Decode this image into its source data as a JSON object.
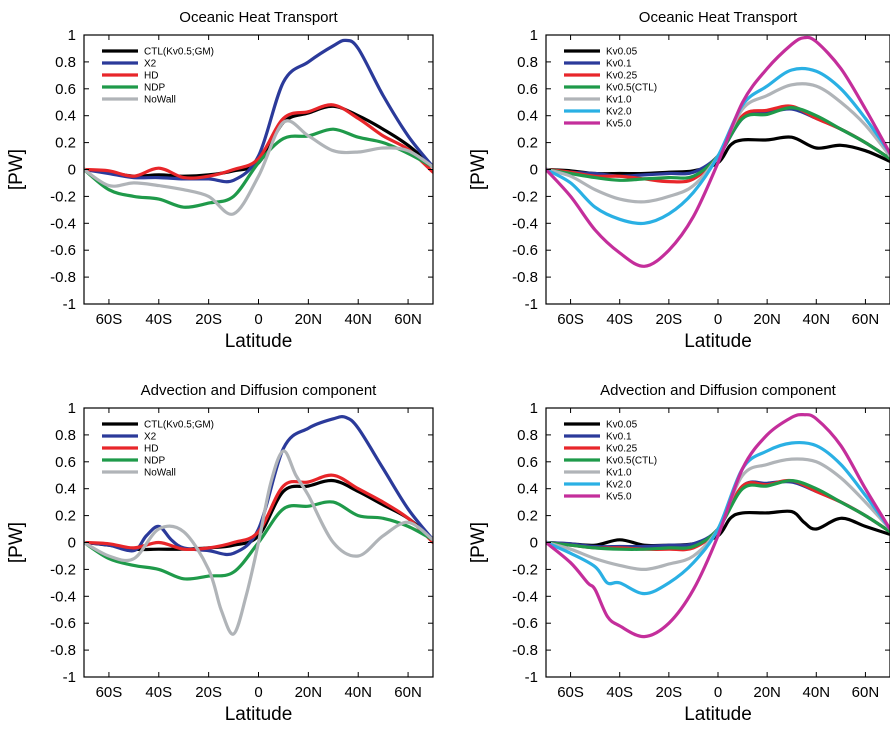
{
  "chart_data": [
    {
      "type": "line",
      "title": "Oceanic Heat Transport",
      "xlabel": "Latitude",
      "ylabel": "[PW]",
      "xlim": [
        -70,
        70
      ],
      "ylim": [
        -1,
        1
      ],
      "xticks": [
        -60,
        -40,
        -20,
        0,
        20,
        40,
        60
      ],
      "xtick_labels": [
        "60S",
        "40S",
        "20S",
        "0",
        "20N",
        "40N",
        "60N"
      ],
      "yticks": [
        -1,
        -0.8,
        -0.6,
        -0.4,
        -0.2,
        0,
        0.2,
        0.4,
        0.6,
        0.8,
        1
      ],
      "ytick_labels": [
        "-1",
        "-0.8",
        "-0.6",
        "-0.4",
        "-0.2",
        "0",
        "0.2",
        "0.4",
        "0.6",
        "0.8",
        "1"
      ],
      "legend_position": "top-left",
      "series": [
        {
          "name": "CTL(Kv0.5;GM)",
          "color": "#000000",
          "x": [
            -70,
            -60,
            -50,
            -40,
            -30,
            -20,
            -10,
            0,
            10,
            20,
            30,
            40,
            50,
            60,
            70
          ],
          "y": [
            0,
            -0.02,
            -0.05,
            -0.04,
            -0.05,
            -0.04,
            -0.01,
            0.05,
            0.35,
            0.42,
            0.47,
            0.4,
            0.3,
            0.18,
            0.02
          ]
        },
        {
          "name": "X2",
          "color": "#2b3a9a",
          "x": [
            -70,
            -60,
            -50,
            -40,
            -30,
            -20,
            -10,
            0,
            10,
            20,
            30,
            35,
            40,
            50,
            60,
            70
          ],
          "y": [
            0,
            -0.03,
            -0.06,
            -0.06,
            -0.07,
            -0.07,
            -0.08,
            0.1,
            0.65,
            0.8,
            0.92,
            0.96,
            0.9,
            0.55,
            0.25,
            0.02
          ]
        },
        {
          "name": "HD",
          "color": "#e8262a",
          "x": [
            -70,
            -60,
            -50,
            -40,
            -30,
            -20,
            -10,
            0,
            10,
            20,
            30,
            40,
            50,
            60,
            70
          ],
          "y": [
            0,
            -0.01,
            -0.05,
            0.01,
            -0.06,
            -0.05,
            0.0,
            0.08,
            0.38,
            0.43,
            0.48,
            0.38,
            0.25,
            0.15,
            -0.02
          ]
        },
        {
          "name": "NDP",
          "color": "#1f9a4a",
          "x": [
            -70,
            -60,
            -50,
            -40,
            -30,
            -20,
            -10,
            0,
            10,
            20,
            30,
            40,
            50,
            60,
            70
          ],
          "y": [
            0,
            -0.15,
            -0.2,
            -0.22,
            -0.28,
            -0.25,
            -0.2,
            0.05,
            0.23,
            0.25,
            0.3,
            0.24,
            0.2,
            0.12,
            0.02
          ]
        },
        {
          "name": "NoWall",
          "color": "#b0b4b8",
          "x": [
            -70,
            -60,
            -50,
            -40,
            -30,
            -20,
            -10,
            0,
            10,
            20,
            30,
            40,
            50,
            60,
            70
          ],
          "y": [
            0,
            -0.12,
            -0.1,
            -0.12,
            -0.15,
            -0.2,
            -0.33,
            -0.05,
            0.35,
            0.25,
            0.14,
            0.13,
            0.16,
            0.14,
            0.02
          ]
        }
      ]
    },
    {
      "type": "line",
      "title": "Oceanic Heat Transport",
      "xlabel": "Latitude",
      "ylabel": "[PW]",
      "xlim": [
        -70,
        70
      ],
      "ylim": [
        -1,
        1
      ],
      "xticks": [
        -60,
        -40,
        -20,
        0,
        20,
        40,
        60
      ],
      "xtick_labels": [
        "60S",
        "40S",
        "20S",
        "0",
        "20N",
        "40N",
        "60N"
      ],
      "yticks": [
        -1,
        -0.8,
        -0.6,
        -0.4,
        -0.2,
        0,
        0.2,
        0.4,
        0.6,
        0.8,
        1
      ],
      "ytick_labels": [
        "-1",
        "-0.8",
        "-0.6",
        "-0.4",
        "-0.2",
        "0",
        "0.2",
        "0.4",
        "0.6",
        "0.8",
        "1"
      ],
      "legend_position": "top-left",
      "series": [
        {
          "name": "Kv0.05",
          "color": "#000000",
          "x": [
            -70,
            -60,
            -50,
            -40,
            -30,
            -20,
            -10,
            0,
            5,
            10,
            20,
            30,
            40,
            50,
            60,
            70
          ],
          "y": [
            0,
            -0.01,
            -0.03,
            -0.03,
            -0.03,
            -0.02,
            -0.01,
            0.05,
            0.18,
            0.22,
            0.22,
            0.24,
            0.16,
            0.18,
            0.14,
            0.06
          ]
        },
        {
          "name": "Kv0.1",
          "color": "#2b3a9a",
          "x": [
            -70,
            -60,
            -50,
            -40,
            -30,
            -20,
            -10,
            0,
            10,
            20,
            30,
            40,
            50,
            60,
            70
          ],
          "y": [
            0,
            -0.02,
            -0.03,
            -0.05,
            -0.04,
            -0.03,
            -0.02,
            0.1,
            0.38,
            0.42,
            0.45,
            0.38,
            0.3,
            0.2,
            0.08
          ]
        },
        {
          "name": "Kv0.25",
          "color": "#e8262a",
          "x": [
            -70,
            -60,
            -50,
            -40,
            -30,
            -20,
            -10,
            0,
            10,
            20,
            30,
            40,
            50,
            60,
            70
          ],
          "y": [
            0,
            -0.02,
            -0.05,
            -0.05,
            -0.07,
            -0.09,
            -0.07,
            0.1,
            0.4,
            0.44,
            0.47,
            0.38,
            0.3,
            0.2,
            0.08
          ]
        },
        {
          "name": "Kv0.5(CTL)",
          "color": "#1f9a4a",
          "x": [
            -70,
            -60,
            -50,
            -40,
            -30,
            -20,
            -10,
            0,
            10,
            20,
            30,
            40,
            50,
            60,
            70
          ],
          "y": [
            0,
            -0.03,
            -0.06,
            -0.08,
            -0.07,
            -0.06,
            -0.05,
            0.1,
            0.38,
            0.41,
            0.46,
            0.4,
            0.3,
            0.2,
            0.08
          ]
        },
        {
          "name": "Kv1.0",
          "color": "#b0b4b8",
          "x": [
            -70,
            -60,
            -50,
            -40,
            -30,
            -20,
            -10,
            0,
            10,
            20,
            30,
            40,
            50,
            60,
            70
          ],
          "y": [
            0,
            -0.05,
            -0.15,
            -0.22,
            -0.24,
            -0.2,
            -0.12,
            0.1,
            0.45,
            0.55,
            0.63,
            0.62,
            0.5,
            0.33,
            0.1
          ]
        },
        {
          "name": "Kv2.0",
          "color": "#2ab0e4",
          "x": [
            -70,
            -60,
            -50,
            -40,
            -30,
            -20,
            -10,
            0,
            10,
            20,
            30,
            40,
            50,
            60,
            70
          ],
          "y": [
            0,
            -0.1,
            -0.28,
            -0.37,
            -0.4,
            -0.33,
            -0.17,
            0.1,
            0.48,
            0.62,
            0.74,
            0.73,
            0.6,
            0.38,
            0.12
          ]
        },
        {
          "name": "Kv5.0",
          "color": "#c42e9b",
          "x": [
            -70,
            -60,
            -50,
            -40,
            -30,
            -20,
            -10,
            0,
            10,
            20,
            30,
            35,
            40,
            50,
            60,
            70
          ],
          "y": [
            0,
            -0.2,
            -0.45,
            -0.62,
            -0.72,
            -0.6,
            -0.35,
            0.05,
            0.5,
            0.75,
            0.93,
            0.98,
            0.95,
            0.75,
            0.45,
            0.12
          ]
        }
      ]
    },
    {
      "type": "line",
      "title": "Advection and Diffusion component",
      "xlabel": "Latitude",
      "ylabel": "[PW]",
      "xlim": [
        -70,
        70
      ],
      "ylim": [
        -1,
        1
      ],
      "xticks": [
        -60,
        -40,
        -20,
        0,
        20,
        40,
        60
      ],
      "xtick_labels": [
        "60S",
        "40S",
        "20S",
        "0",
        "20N",
        "40N",
        "60N"
      ],
      "yticks": [
        -1,
        -0.8,
        -0.6,
        -0.4,
        -0.2,
        0,
        0.2,
        0.4,
        0.6,
        0.8,
        1
      ],
      "ytick_labels": [
        "-1",
        "-0.8",
        "-0.6",
        "-0.4",
        "-0.2",
        "0",
        "0.2",
        "0.4",
        "0.6",
        "0.8",
        "1"
      ],
      "legend_position": "top-left",
      "series": [
        {
          "name": "CTL(Kv0.5;GM)",
          "color": "#000000",
          "x": [
            -70,
            -60,
            -50,
            -40,
            -30,
            -20,
            -10,
            0,
            10,
            20,
            30,
            40,
            50,
            60,
            70
          ],
          "y": [
            0,
            -0.02,
            -0.05,
            -0.05,
            -0.05,
            -0.04,
            -0.02,
            0.05,
            0.38,
            0.42,
            0.46,
            0.38,
            0.28,
            0.18,
            0.02
          ]
        },
        {
          "name": "X2",
          "color": "#2b3a9a",
          "x": [
            -70,
            -60,
            -50,
            -45,
            -40,
            -35,
            -30,
            -20,
            -10,
            0,
            10,
            20,
            30,
            35,
            40,
            50,
            60,
            70
          ],
          "y": [
            0,
            -0.02,
            -0.06,
            0.05,
            0.12,
            0.02,
            -0.04,
            -0.06,
            -0.08,
            0.1,
            0.7,
            0.85,
            0.92,
            0.93,
            0.85,
            0.55,
            0.25,
            0.02
          ]
        },
        {
          "name": "HD",
          "color": "#e8262a",
          "x": [
            -70,
            -60,
            -50,
            -40,
            -30,
            -20,
            -10,
            0,
            10,
            20,
            30,
            40,
            50,
            60,
            70
          ],
          "y": [
            0,
            -0.01,
            -0.04,
            0.0,
            -0.05,
            -0.04,
            0.0,
            0.08,
            0.42,
            0.45,
            0.5,
            0.4,
            0.3,
            0.18,
            0.0
          ]
        },
        {
          "name": "NDP",
          "color": "#1f9a4a",
          "x": [
            -70,
            -60,
            -50,
            -40,
            -30,
            -20,
            -10,
            0,
            10,
            20,
            30,
            40,
            50,
            60,
            70
          ],
          "y": [
            0,
            -0.12,
            -0.17,
            -0.2,
            -0.27,
            -0.25,
            -0.22,
            0.0,
            0.25,
            0.27,
            0.3,
            0.2,
            0.18,
            0.12,
            0.02
          ]
        },
        {
          "name": "NoWall",
          "color": "#b0b4b8",
          "x": [
            -70,
            -60,
            -50,
            -40,
            -30,
            -20,
            -15,
            -10,
            -5,
            0,
            5,
            10,
            15,
            20,
            30,
            40,
            50,
            60,
            70
          ],
          "y": [
            0,
            -0.1,
            -0.12,
            0.1,
            0.08,
            -0.2,
            -0.5,
            -0.68,
            -0.4,
            0.0,
            0.45,
            0.68,
            0.5,
            0.35,
            0.0,
            -0.1,
            0.05,
            0.15,
            0.02
          ]
        }
      ]
    },
    {
      "type": "line",
      "title": "Advection and Diffusion component",
      "xlabel": "Latitude",
      "ylabel": "[PW]",
      "xlim": [
        -70,
        70
      ],
      "ylim": [
        -1,
        1
      ],
      "xticks": [
        -60,
        -40,
        -20,
        0,
        20,
        40,
        60
      ],
      "xtick_labels": [
        "60S",
        "40S",
        "20S",
        "0",
        "20N",
        "40N",
        "60N"
      ],
      "yticks": [
        -1,
        -0.8,
        -0.6,
        -0.4,
        -0.2,
        0,
        0.2,
        0.4,
        0.6,
        0.8,
        1
      ],
      "ytick_labels": [
        "-1",
        "-0.8",
        "-0.6",
        "-0.4",
        "-0.2",
        "0",
        "0.2",
        "0.4",
        "0.6",
        "0.8",
        "1"
      ],
      "legend_position": "top-left",
      "series": [
        {
          "name": "Kv0.05",
          "color": "#000000",
          "x": [
            -70,
            -60,
            -50,
            -40,
            -30,
            -20,
            -10,
            0,
            5,
            10,
            20,
            30,
            35,
            40,
            50,
            60,
            70
          ],
          "y": [
            0,
            -0.01,
            -0.02,
            0.02,
            -0.02,
            -0.02,
            -0.01,
            0.05,
            0.18,
            0.22,
            0.22,
            0.23,
            0.15,
            0.1,
            0.18,
            0.12,
            0.06
          ]
        },
        {
          "name": "Kv0.1",
          "color": "#2b3a9a",
          "x": [
            -70,
            -60,
            -50,
            -40,
            -30,
            -20,
            -10,
            0,
            10,
            20,
            30,
            40,
            50,
            60,
            70
          ],
          "y": [
            0,
            -0.01,
            -0.03,
            -0.03,
            -0.03,
            -0.02,
            -0.01,
            0.1,
            0.42,
            0.44,
            0.45,
            0.38,
            0.3,
            0.2,
            0.08
          ]
        },
        {
          "name": "Kv0.25",
          "color": "#e8262a",
          "x": [
            -70,
            -60,
            -50,
            -40,
            -30,
            -20,
            -10,
            0,
            10,
            20,
            30,
            40,
            50,
            60,
            70
          ],
          "y": [
            0,
            -0.02,
            -0.04,
            -0.04,
            -0.05,
            -0.05,
            -0.04,
            0.1,
            0.42,
            0.43,
            0.46,
            0.38,
            0.3,
            0.2,
            0.08
          ]
        },
        {
          "name": "Kv0.5(CTL)",
          "color": "#1f9a4a",
          "x": [
            -70,
            -60,
            -50,
            -40,
            -30,
            -20,
            -10,
            0,
            10,
            20,
            30,
            40,
            50,
            60,
            70
          ],
          "y": [
            0,
            -0.02,
            -0.04,
            -0.05,
            -0.05,
            -0.04,
            -0.03,
            0.1,
            0.4,
            0.42,
            0.46,
            0.4,
            0.3,
            0.2,
            0.08
          ]
        },
        {
          "name": "Kv1.0",
          "color": "#b0b4b8",
          "x": [
            -70,
            -60,
            -50,
            -40,
            -30,
            -20,
            -10,
            0,
            10,
            20,
            30,
            40,
            50,
            60,
            70
          ],
          "y": [
            0,
            -0.05,
            -0.12,
            -0.17,
            -0.2,
            -0.16,
            -0.1,
            0.1,
            0.5,
            0.58,
            0.62,
            0.6,
            0.48,
            0.3,
            0.1
          ]
        },
        {
          "name": "Kv2.0",
          "color": "#2ab0e4",
          "x": [
            -70,
            -60,
            -50,
            -45,
            -40,
            -30,
            -20,
            -10,
            0,
            10,
            20,
            30,
            40,
            50,
            60,
            70
          ],
          "y": [
            0,
            -0.08,
            -0.18,
            -0.3,
            -0.3,
            -0.38,
            -0.3,
            -0.15,
            0.1,
            0.55,
            0.68,
            0.74,
            0.72,
            0.58,
            0.35,
            0.1
          ]
        },
        {
          "name": "Kv5.0",
          "color": "#c42e9b",
          "x": [
            -70,
            -60,
            -53,
            -50,
            -45,
            -40,
            -30,
            -20,
            -10,
            0,
            10,
            20,
            30,
            35,
            40,
            50,
            60,
            70
          ],
          "y": [
            0,
            -0.15,
            -0.3,
            -0.35,
            -0.55,
            -0.62,
            -0.7,
            -0.6,
            -0.35,
            0.05,
            0.55,
            0.8,
            0.93,
            0.95,
            0.92,
            0.72,
            0.4,
            0.1
          ]
        }
      ]
    }
  ]
}
